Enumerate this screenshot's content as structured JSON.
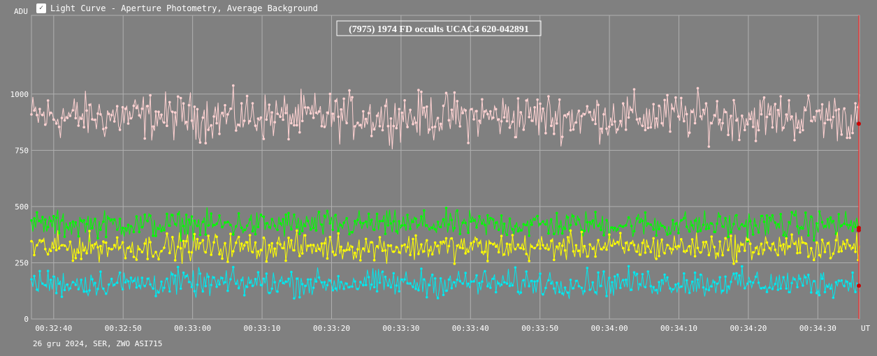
{
  "window": {
    "title": "Light Curve - Aperture Photometry, Average Background"
  },
  "footer": {
    "text": "26 gru 2024, SER, ZWO ASI715"
  },
  "chart_data": {
    "type": "line",
    "title": "(7975) 1974 FD occults UCAC4 620-042891",
    "ylabel": "ADU",
    "xlabel": "UT",
    "x_time_range": [
      "00:32:36.8",
      "00:34:36.0"
    ],
    "ylim": [
      0,
      1350
    ],
    "y_ticks": [
      0,
      250,
      500,
      750,
      1000
    ],
    "x_ticks": [
      "00:32:40",
      "00:32:50",
      "00:33:00",
      "00:33:10",
      "00:33:20",
      "00:33:30",
      "00:33:40",
      "00:33:50",
      "00:34:00",
      "00:34:10",
      "00:34:20",
      "00:34:30"
    ],
    "grid": true,
    "sample_count": 600,
    "series": [
      {
        "color": "#ffd2d2",
        "mean_adu": 900,
        "noise_adu": 70,
        "value_at_cursor": 868
      },
      {
        "color": "#00ff00",
        "mean_adu": 420,
        "noise_adu": 40,
        "value_at_cursor": 395
      },
      {
        "color": "#ffff00",
        "mean_adu": 320,
        "noise_adu": 40,
        "value_at_cursor": 405
      },
      {
        "color": "#00e8ee",
        "mean_adu": 160,
        "noise_adu": 40,
        "value_at_cursor": 148
      }
    ],
    "cursor_color": "#ff2222",
    "grid_color": "#b0b0b0"
  }
}
